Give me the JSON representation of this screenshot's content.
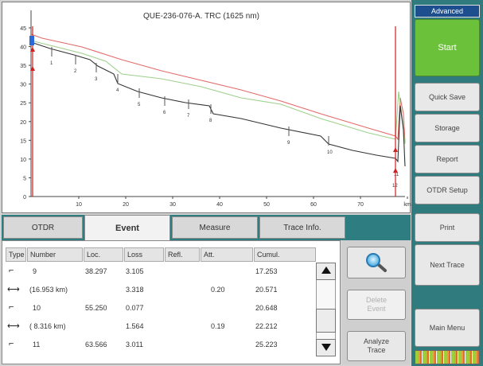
{
  "trace_title": "QUE-236-076-A. TRC (1625 nm)",
  "plot": {
    "y_ticks": [
      "45",
      "40",
      "35",
      "30",
      "25",
      "20",
      "15",
      "10",
      "5",
      "0"
    ],
    "x_ticks": [
      "10",
      "20",
      "30",
      "40",
      "50",
      "60",
      "70",
      "km"
    ],
    "event_markers": [
      "1",
      "2",
      "3",
      "4",
      "5",
      "6",
      "7",
      "8",
      "9",
      "10",
      "11",
      "12"
    ],
    "colors": {
      "red_trace": "#e36a6a",
      "green_trace": "#9ed08c",
      "black_trace": "#333333",
      "cursor_red": "#d21f1f",
      "cursor_blue": "#2a6ad8"
    }
  },
  "tabs": [
    "OTDR",
    "Event",
    "Measure",
    "Trace Info."
  ],
  "active_tab": "Event",
  "events_table": {
    "headers": [
      "Type",
      "Number",
      "Loc.",
      "Loss",
      "Refl.",
      "Att.",
      "Cumul."
    ],
    "rows": [
      {
        "icon": "event-step",
        "number": "9",
        "loc": "38.297",
        "loss": "3.105",
        "refl": "",
        "att": "",
        "cumul": "17.253"
      },
      {
        "icon": "span-arrow",
        "number": "(16.953 km)",
        "loc": "",
        "loss": "3.318",
        "refl": "",
        "att": "0.20",
        "cumul": "20.571"
      },
      {
        "icon": "event-step",
        "number": "10",
        "loc": "55.250",
        "loss": "0.077",
        "refl": "",
        "att": "",
        "cumul": "20.648"
      },
      {
        "icon": "span-arrow",
        "number": "( 8.316 km)",
        "loc": "",
        "loss": "1.564",
        "refl": "",
        "att": "0.19",
        "cumul": "22.212"
      },
      {
        "icon": "event-step",
        "number": "11",
        "loc": "63.566",
        "loss": "3.011",
        "refl": "",
        "att": "",
        "cumul": "25.223"
      }
    ]
  },
  "center_buttons": {
    "zoom_icon": "magnifier-icon",
    "delete_event": "Delete\nEvent",
    "analyze_trace": "Analyze\nTrace"
  },
  "right_panel": {
    "mode": "Advanced",
    "start": "Start",
    "buttons": [
      "Quick Save",
      "Storage",
      "Report",
      "OTDR Setup",
      "Print",
      "Next Trace",
      "Main Menu"
    ]
  }
}
